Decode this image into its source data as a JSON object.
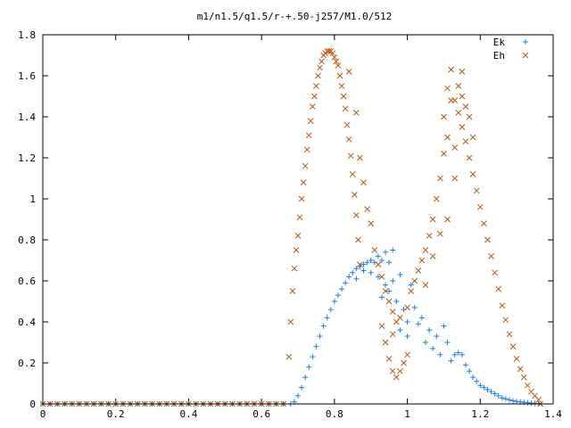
{
  "chart_data": {
    "type": "scatter",
    "title": "m1/n1.5/q1.5/r-+.50-j257/M1.0/512",
    "xlabel": "",
    "ylabel": "",
    "xlim": [
      0,
      1.4
    ],
    "ylim": [
      0,
      1.8
    ],
    "xticks": [
      "0",
      "0.2",
      "0.4",
      "0.6",
      "0.8",
      "1",
      "1.2",
      "1.4"
    ],
    "yticks": [
      "0",
      "0.2",
      "0.4",
      "0.6",
      "0.8",
      "1",
      "1.2",
      "1.4",
      "1.6",
      "1.8"
    ],
    "legend_position": "top-right",
    "grid": false,
    "series": [
      {
        "name": "Ek",
        "marker": "plus",
        "color": "#1f7fdc",
        "points": [
          [
            0.0,
            0
          ],
          [
            0.02,
            0
          ],
          [
            0.04,
            0
          ],
          [
            0.06,
            0
          ],
          [
            0.08,
            0
          ],
          [
            0.1,
            0
          ],
          [
            0.12,
            0
          ],
          [
            0.14,
            0
          ],
          [
            0.16,
            0
          ],
          [
            0.18,
            0
          ],
          [
            0.2,
            0
          ],
          [
            0.22,
            0
          ],
          [
            0.24,
            0
          ],
          [
            0.26,
            0
          ],
          [
            0.28,
            0
          ],
          [
            0.3,
            0
          ],
          [
            0.32,
            0
          ],
          [
            0.34,
            0
          ],
          [
            0.36,
            0
          ],
          [
            0.38,
            0
          ],
          [
            0.4,
            0
          ],
          [
            0.42,
            0
          ],
          [
            0.44,
            0
          ],
          [
            0.46,
            0
          ],
          [
            0.48,
            0
          ],
          [
            0.5,
            0
          ],
          [
            0.52,
            0
          ],
          [
            0.54,
            0
          ],
          [
            0.56,
            0
          ],
          [
            0.58,
            0
          ],
          [
            0.6,
            0
          ],
          [
            0.62,
            0
          ],
          [
            0.64,
            0
          ],
          [
            0.66,
            0
          ],
          [
            0.68,
            0
          ],
          [
            0.69,
            0.01
          ],
          [
            0.7,
            0.04
          ],
          [
            0.71,
            0.08
          ],
          [
            0.72,
            0.13
          ],
          [
            0.73,
            0.18
          ],
          [
            0.74,
            0.23
          ],
          [
            0.75,
            0.28
          ],
          [
            0.76,
            0.33
          ],
          [
            0.77,
            0.38
          ],
          [
            0.78,
            0.42
          ],
          [
            0.79,
            0.46
          ],
          [
            0.8,
            0.5
          ],
          [
            0.81,
            0.53
          ],
          [
            0.82,
            0.56
          ],
          [
            0.83,
            0.59
          ],
          [
            0.84,
            0.62
          ],
          [
            0.85,
            0.64
          ],
          [
            0.86,
            0.66
          ],
          [
            0.87,
            0.67
          ],
          [
            0.88,
            0.68
          ],
          [
            0.89,
            0.69
          ],
          [
            0.9,
            0.7
          ],
          [
            0.91,
            0.69
          ],
          [
            0.92,
            0.72
          ],
          [
            0.93,
            0.7
          ],
          [
            0.94,
            0.74
          ],
          [
            0.95,
            0.69
          ],
          [
            0.96,
            0.75
          ],
          [
            0.86,
            0.61
          ],
          [
            0.88,
            0.65
          ],
          [
            0.9,
            0.64
          ],
          [
            0.92,
            0.62
          ],
          [
            0.94,
            0.58
          ],
          [
            0.96,
            0.6
          ],
          [
            0.98,
            0.63
          ],
          [
            0.93,
            0.52
          ],
          [
            0.95,
            0.55
          ],
          [
            0.97,
            0.5
          ],
          [
            0.99,
            0.46
          ],
          [
            1.0,
            0.4
          ],
          [
            1.01,
            0.58
          ],
          [
            1.02,
            0.47
          ],
          [
            0.98,
            0.36
          ],
          [
            1.0,
            0.33
          ],
          [
            1.03,
            0.39
          ],
          [
            1.04,
            0.42
          ],
          [
            1.05,
            0.3
          ],
          [
            1.06,
            0.36
          ],
          [
            1.07,
            0.27
          ],
          [
            1.08,
            0.33
          ],
          [
            1.09,
            0.24
          ],
          [
            1.1,
            0.38
          ],
          [
            1.11,
            0.3
          ],
          [
            1.12,
            0.21
          ],
          [
            1.13,
            0.24
          ],
          [
            1.14,
            0.25
          ],
          [
            1.15,
            0.24
          ],
          [
            1.16,
            0.19
          ],
          [
            1.17,
            0.16
          ],
          [
            1.18,
            0.13
          ],
          [
            1.19,
            0.11
          ],
          [
            1.2,
            0.09
          ],
          [
            1.21,
            0.08
          ],
          [
            1.22,
            0.07
          ],
          [
            1.23,
            0.06
          ],
          [
            1.24,
            0.05
          ],
          [
            1.25,
            0.04
          ],
          [
            1.26,
            0.03
          ],
          [
            1.27,
            0.025
          ],
          [
            1.28,
            0.02
          ],
          [
            1.29,
            0.015
          ],
          [
            1.3,
            0.012
          ],
          [
            1.31,
            0.01
          ],
          [
            1.32,
            0.008
          ],
          [
            1.33,
            0.006
          ],
          [
            1.34,
            0.004
          ],
          [
            1.35,
            0.002
          ],
          [
            1.36,
            0.001
          ]
        ]
      },
      {
        "name": "Eh",
        "marker": "cross",
        "color": "#b85a14",
        "points": [
          [
            0.0,
            0
          ],
          [
            0.02,
            0
          ],
          [
            0.04,
            0
          ],
          [
            0.06,
            0
          ],
          [
            0.08,
            0
          ],
          [
            0.1,
            0
          ],
          [
            0.12,
            0
          ],
          [
            0.14,
            0
          ],
          [
            0.16,
            0
          ],
          [
            0.18,
            0
          ],
          [
            0.2,
            0
          ],
          [
            0.22,
            0
          ],
          [
            0.24,
            0
          ],
          [
            0.26,
            0
          ],
          [
            0.28,
            0
          ],
          [
            0.3,
            0
          ],
          [
            0.32,
            0
          ],
          [
            0.34,
            0
          ],
          [
            0.36,
            0
          ],
          [
            0.38,
            0
          ],
          [
            0.4,
            0
          ],
          [
            0.42,
            0
          ],
          [
            0.44,
            0
          ],
          [
            0.46,
            0
          ],
          [
            0.48,
            0
          ],
          [
            0.5,
            0
          ],
          [
            0.52,
            0
          ],
          [
            0.54,
            0
          ],
          [
            0.56,
            0
          ],
          [
            0.58,
            0
          ],
          [
            0.6,
            0
          ],
          [
            0.62,
            0
          ],
          [
            0.64,
            0
          ],
          [
            0.66,
            0
          ],
          [
            0.675,
            0.23
          ],
          [
            0.68,
            0.4
          ],
          [
            0.685,
            0.55
          ],
          [
            0.69,
            0.66
          ],
          [
            0.695,
            0.75
          ],
          [
            0.7,
            0.82
          ],
          [
            0.705,
            0.91
          ],
          [
            0.71,
            1.0
          ],
          [
            0.715,
            1.08
          ],
          [
            0.72,
            1.16
          ],
          [
            0.725,
            1.24
          ],
          [
            0.73,
            1.31
          ],
          [
            0.735,
            1.38
          ],
          [
            0.74,
            1.45
          ],
          [
            0.745,
            1.5
          ],
          [
            0.75,
            1.55
          ],
          [
            0.755,
            1.6
          ],
          [
            0.76,
            1.64
          ],
          [
            0.765,
            1.67
          ],
          [
            0.77,
            1.7
          ],
          [
            0.775,
            1.71
          ],
          [
            0.78,
            1.72
          ],
          [
            0.785,
            1.72
          ],
          [
            0.79,
            1.72
          ],
          [
            0.795,
            1.71
          ],
          [
            0.8,
            1.69
          ],
          [
            0.805,
            1.67
          ],
          [
            0.81,
            1.65
          ],
          [
            0.815,
            1.6
          ],
          [
            0.82,
            1.55
          ],
          [
            0.825,
            1.5
          ],
          [
            0.83,
            1.44
          ],
          [
            0.835,
            1.36
          ],
          [
            0.84,
            1.29
          ],
          [
            0.845,
            1.21
          ],
          [
            0.85,
            1.12
          ],
          [
            0.855,
            1.02
          ],
          [
            0.86,
            0.92
          ],
          [
            0.865,
            0.8
          ],
          [
            0.87,
            0.68
          ],
          [
            0.84,
            1.62
          ],
          [
            0.86,
            1.42
          ],
          [
            0.87,
            1.2
          ],
          [
            0.88,
            1.08
          ],
          [
            0.89,
            0.95
          ],
          [
            0.9,
            0.88
          ],
          [
            0.91,
            0.75
          ],
          [
            0.92,
            0.68
          ],
          [
            0.93,
            0.62
          ],
          [
            0.94,
            0.55
          ],
          [
            0.95,
            0.5
          ],
          [
            0.96,
            0.45
          ],
          [
            0.97,
            0.4
          ],
          [
            0.95,
            0.22
          ],
          [
            0.96,
            0.16
          ],
          [
            0.97,
            0.13
          ],
          [
            0.98,
            0.16
          ],
          [
            0.99,
            0.2
          ],
          [
            1.0,
            0.24
          ],
          [
            0.93,
            0.38
          ],
          [
            0.94,
            0.3
          ],
          [
            0.96,
            0.34
          ],
          [
            0.98,
            0.42
          ],
          [
            1.0,
            0.47
          ],
          [
            1.01,
            0.55
          ],
          [
            1.02,
            0.6
          ],
          [
            1.03,
            0.65
          ],
          [
            1.04,
            0.7
          ],
          [
            1.05,
            0.75
          ],
          [
            1.06,
            0.82
          ],
          [
            1.07,
            0.9
          ],
          [
            1.08,
            1.0
          ],
          [
            1.09,
            1.1
          ],
          [
            1.1,
            1.22
          ],
          [
            1.1,
            1.4
          ],
          [
            1.11,
            1.54
          ],
          [
            1.12,
            1.63
          ],
          [
            1.13,
            1.48
          ],
          [
            1.14,
            1.42
          ],
          [
            1.15,
            1.35
          ],
          [
            1.16,
            1.28
          ],
          [
            1.17,
            1.2
          ],
          [
            1.18,
            1.12
          ],
          [
            1.19,
            1.04
          ],
          [
            1.2,
            0.96
          ],
          [
            1.21,
            0.88
          ],
          [
            1.22,
            0.8
          ],
          [
            1.23,
            0.72
          ],
          [
            1.24,
            0.64
          ],
          [
            1.25,
            0.56
          ],
          [
            1.26,
            0.48
          ],
          [
            1.27,
            0.41
          ],
          [
            1.28,
            0.34
          ],
          [
            1.29,
            0.28
          ],
          [
            1.3,
            0.22
          ],
          [
            1.31,
            0.17
          ],
          [
            1.32,
            0.13
          ],
          [
            1.33,
            0.09
          ],
          [
            1.34,
            0.06
          ],
          [
            1.35,
            0.04
          ],
          [
            1.36,
            0.02
          ],
          [
            1.365,
            0.0
          ],
          [
            1.05,
            0.58
          ],
          [
            1.07,
            0.72
          ],
          [
            1.09,
            0.83
          ],
          [
            1.11,
            0.9
          ],
          [
            1.13,
            1.1
          ],
          [
            1.15,
            1.5
          ],
          [
            1.16,
            1.45
          ],
          [
            1.17,
            1.4
          ],
          [
            1.18,
            1.3
          ],
          [
            1.14,
            1.55
          ],
          [
            1.12,
            1.48
          ],
          [
            1.11,
            1.3
          ],
          [
            1.15,
            1.62
          ],
          [
            1.13,
            1.25
          ]
        ]
      }
    ]
  }
}
